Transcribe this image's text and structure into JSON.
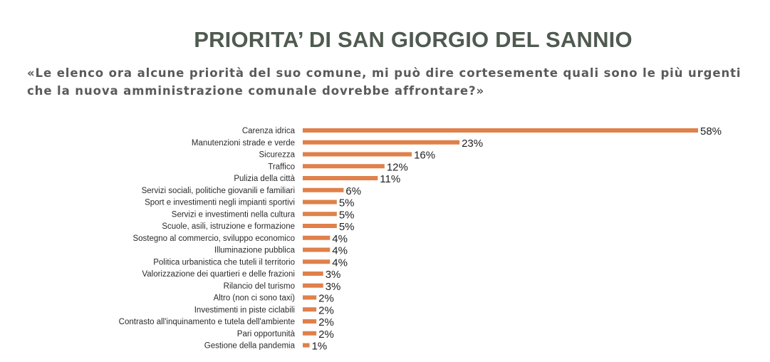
{
  "title": "PRIORITA’ DI SAN GIORGIO DEL SANNIO",
  "question": "«Le elenco ora alcune priorità del suo comune, mi può dire cortesemente quali sono le più urgenti che la nuova amministrazione comunale dovrebbe affrontare?»",
  "chart_data": {
    "type": "bar",
    "orientation": "horizontal",
    "categories": [
      "Carenza idrica",
      "Manutenzioni strade e verde",
      "Sicurezza",
      "Traffico",
      "Pulizia della città",
      "Servizi sociali, politiche giovanili e familiari",
      "Sport e investimenti negli impianti sportivi",
      "Servizi e investimenti nella cultura",
      "Scuole, asili, istruzione e formazione",
      "Sostegno al commercio, sviluppo economico",
      "Illuminazione pubblica",
      "Politica urbanistica che tuteli il territorio",
      "Valorizzazione dei quartieri e delle frazioni",
      "Rilancio del turismo",
      "Altro (non ci sono taxi)",
      "Investimenti in piste ciclabili",
      "Contrasto all'inquinamento e tutela dell'ambiente",
      "Pari opportunità",
      "Gestione della pandemia"
    ],
    "values": [
      58,
      23,
      16,
      12,
      11,
      6,
      5,
      5,
      5,
      4,
      4,
      4,
      3,
      3,
      2,
      2,
      2,
      2,
      1
    ],
    "value_labels": [
      "58%",
      "23%",
      "16%",
      "12%",
      "11%",
      "6%",
      "5%",
      "5%",
      "5%",
      "4%",
      "4%",
      "4%",
      "3%",
      "3%",
      "2%",
      "2%",
      "2%",
      "2%",
      "1%"
    ],
    "xlim": [
      0,
      58
    ],
    "grid": false,
    "legend": "none",
    "bar_color": "#e0804a"
  }
}
